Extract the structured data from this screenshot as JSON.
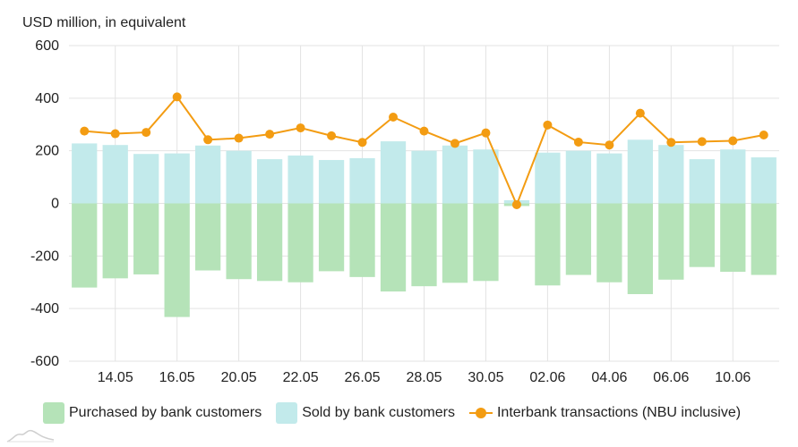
{
  "chart_data": {
    "type": "bar",
    "ylabel": "USD million, in equivalent",
    "ylim": [
      -600,
      600
    ],
    "yticks": [
      600,
      400,
      200,
      0,
      -200,
      -400,
      -600
    ],
    "x_tick_labels": [
      "14.05",
      "16.05",
      "20.05",
      "22.05",
      "26.05",
      "28.05",
      "30.05",
      "02.06",
      "04.06",
      "06.06",
      "10.06"
    ],
    "x_tick_positions": [
      1.5,
      3.5,
      5.5,
      7.5,
      9.5,
      11.5,
      13.5,
      15.5,
      17.5,
      19.5,
      21.5
    ],
    "n_points": 23,
    "series": [
      {
        "name": "Purchased by bank customers",
        "type": "bar",
        "color": "#b5e3b8",
        "values": [
          -320,
          -285,
          -270,
          -432,
          -255,
          -288,
          -295,
          -300,
          -258,
          -280,
          -335,
          -315,
          -302,
          -295,
          -10,
          -312,
          -272,
          -300,
          -345,
          -290,
          -242,
          -260,
          -272
        ]
      },
      {
        "name": "Sold by bank customers",
        "type": "bar",
        "color": "#c2eaeb",
        "values": [
          228,
          222,
          188,
          190,
          220,
          200,
          168,
          182,
          165,
          172,
          236,
          200,
          220,
          205,
          12,
          193,
          200,
          190,
          242,
          222,
          168,
          205,
          175
        ]
      },
      {
        "name": "Interbank transactions (NBU inclusive)",
        "type": "line",
        "color": "#f39c12",
        "values": [
          275,
          265,
          270,
          405,
          242,
          248,
          263,
          287,
          257,
          232,
          328,
          275,
          228,
          268,
          -5,
          298,
          233,
          222,
          343,
          232,
          235,
          238,
          260
        ]
      }
    ],
    "grid": true,
    "legend_position": "bottom"
  }
}
